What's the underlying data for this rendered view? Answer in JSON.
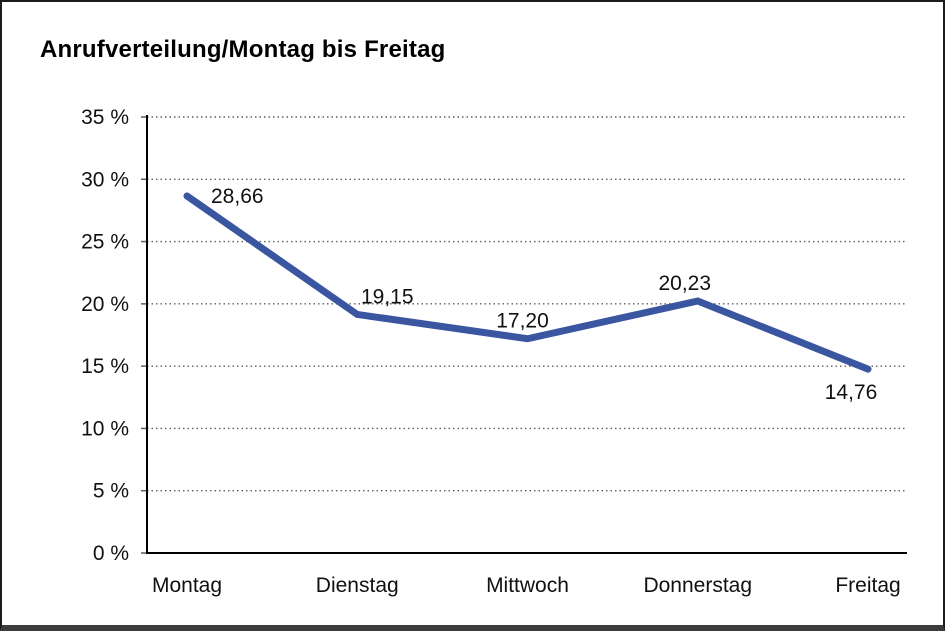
{
  "title": "Anrufverteilung/Montag bis Freitag",
  "chart_data": {
    "type": "line",
    "title": "Anrufverteilung/Montag bis Freitag",
    "categories": [
      "Montag",
      "Dienstag",
      "Mittwoch",
      "Donnerstag",
      "Freitag"
    ],
    "values": [
      28.66,
      19.15,
      17.2,
      20.23,
      14.76
    ],
    "point_labels": [
      "28,66",
      "19,15",
      "17,20",
      "20,23",
      "14,76"
    ],
    "label_placements": [
      "right",
      "above",
      "above",
      "above",
      "below"
    ],
    "ylim": [
      0,
      35
    ],
    "ytick_step": 5,
    "ytick_labels": [
      "0 %",
      "5 %",
      "10 %",
      "15 %",
      "20 %",
      "25 %",
      "30 %",
      "35 %"
    ],
    "xlabel": "",
    "ylabel": "",
    "grid": "horizontal-dotted",
    "legend": "none",
    "line_color": "#3A56A0",
    "axis_color": "#000000",
    "grid_color": "#5f5f5f",
    "text_color": "#111111"
  }
}
